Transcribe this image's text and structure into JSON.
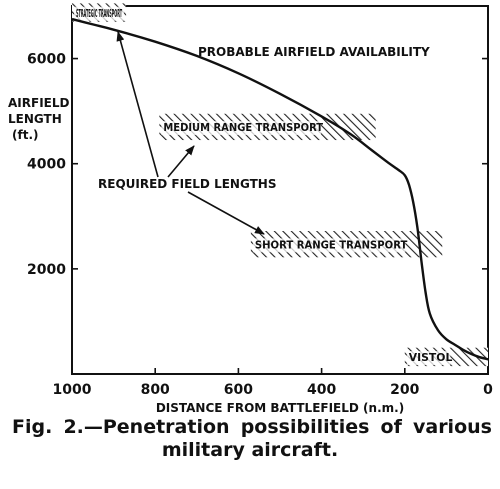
{
  "chart_data": {
    "type": "line",
    "xlabel": "DISTANCE FROM BATTLEFIELD (n.m.)",
    "ylabel_lines": [
      "AIRFIELD",
      "LENGTH",
      "(ft.)"
    ],
    "xlim": [
      1000,
      0
    ],
    "ylim": [
      0,
      7000
    ],
    "x_ticks": [
      1000,
      800,
      600,
      400,
      200,
      0
    ],
    "y_ticks": [
      2000,
      4000,
      6000
    ],
    "grid": false,
    "series": [
      {
        "name": "PROBABLE AIRFIELD AVAILABILITY",
        "x": [
          1000,
          950,
          900,
          800,
          700,
          600,
          500,
          400,
          330,
          280,
          240,
          215,
          200,
          190,
          180,
          170,
          160,
          150,
          140,
          120,
          100,
          80,
          60,
          40,
          20,
          0
        ],
        "y": [
          6750,
          6650,
          6550,
          6320,
          6050,
          5720,
          5330,
          4900,
          4560,
          4260,
          4020,
          3880,
          3780,
          3600,
          3280,
          2800,
          2150,
          1550,
          1150,
          830,
          660,
          560,
          460,
          380,
          320,
          280
        ]
      }
    ],
    "bands": [
      {
        "label": "STRATEGIC TRANSPORT",
        "x_from": 1000,
        "x_to": 870,
        "y_from": 6700,
        "y_to": 7050
      },
      {
        "label": "MEDIUM RANGE TRANSPORT",
        "x_from": 790,
        "x_to": 270,
        "y_from": 4450,
        "y_to": 4950
      },
      {
        "label": "SHORT RANGE TRANSPORT",
        "x_from": 570,
        "x_to": 110,
        "y_from": 2220,
        "y_to": 2720
      },
      {
        "label": "VISTOL",
        "x_from": 200,
        "x_to": 0,
        "y_from": 150,
        "y_to": 500
      }
    ],
    "annotations": [
      {
        "text": "PROBABLE AIRFIELD AVAILABILITY"
      },
      {
        "text": "REQUIRED FIELD LENGTHS"
      }
    ]
  },
  "caption": {
    "line1": [
      "Fig.",
      "2.—Penetration",
      "possibilities",
      "of",
      "various"
    ],
    "line2": "military aircraft."
  }
}
